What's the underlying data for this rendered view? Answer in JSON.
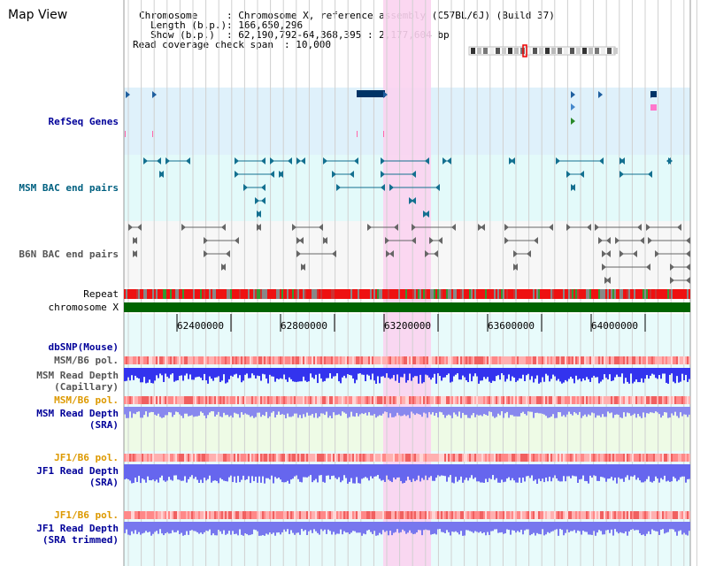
{
  "title": "Map View",
  "header": {
    "chromosome_key": "Chromosome",
    "chromosome_value": ": Chromosome X, reference assembly (C57BL/6J) (Build 37)",
    "length_key": "Length (b.p.)",
    "length_value": ": 166,650,296",
    "show_key": "Show (b.p.)",
    "show_value": ": 62,190,792-64,368,395 : 2,177,604 bp",
    "span_key": "Read coverage check span",
    "span_value": ": 10,000"
  },
  "tracks": {
    "refseq": "RefSeq Genes",
    "msm_bac": "MSM BAC end pairs",
    "b6n_bac": "B6N BAC end pairs",
    "repeat": "Repeat",
    "chromosome": "chromosome X",
    "dbsnp": "dbSNP(Mouse)",
    "msm_pol": "MSM/B6 pol.",
    "msm_depth_cap_1": "MSM Read Depth",
    "msm_depth_cap_2": "(Capillary)",
    "msm_pol2": "MSM/B6 pol.",
    "msm_depth_sra_1": "MSM Read Depth",
    "msm_depth_sra_2": "(SRA)",
    "jf1_pol": "JF1/B6 pol.",
    "jf1_depth_1": "JF1 Read Depth",
    "jf1_depth_2": "(SRA)",
    "jf1_pol2": "JF1/B6 pol.",
    "jf1_trim_1": "JF1 Read Depth",
    "jf1_trim_2": "(SRA trimmed)"
  },
  "axis_ticks": [
    "62400000",
    "62800000",
    "63200000",
    "63600000",
    "64000000"
  ],
  "colors": {
    "refseq_bg": "#dff1fb",
    "msm_bac_bg": "#e3fafa",
    "b6n_bg": "#f7f7f7",
    "highlight": "#fbd3f0",
    "chromosome": "#006400",
    "depth_blue": "#3333ff",
    "label_navy": "#000099",
    "label_teal": "#006080",
    "label_gray": "#555555",
    "label_orange": "#dd9900"
  }
}
